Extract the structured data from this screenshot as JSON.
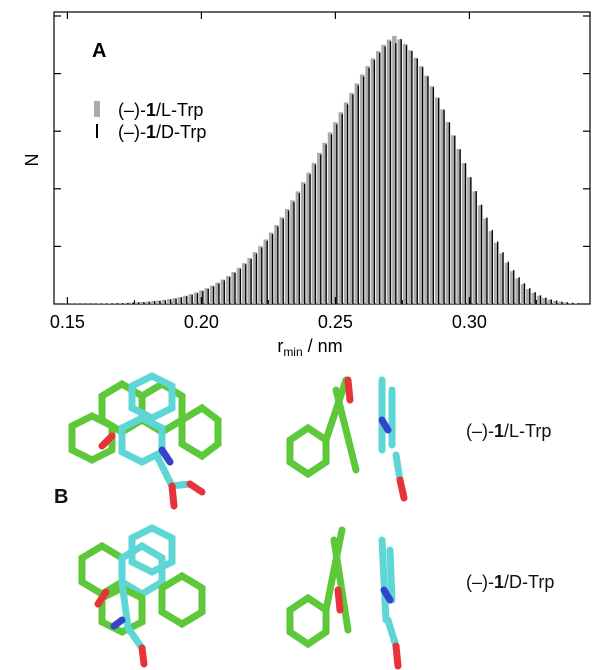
{
  "panel_a_label": "A",
  "panel_b_label": "B",
  "chart_data": {
    "type": "bar",
    "xlabel_main": "r",
    "xlabel_sub": "min",
    "xlabel_unit": " / nm",
    "ylabel": "N",
    "xlim": [
      0.145,
      0.345
    ],
    "ylim": [
      0,
      1.0
    ],
    "x_ticks": [
      "0.15",
      "0.20",
      "0.25",
      "0.30"
    ],
    "x_tick_values": [
      0.15,
      0.2,
      0.25,
      0.3
    ],
    "y_ticks_labeled": false,
    "bin_width": 0.002,
    "series": [
      {
        "name": "(–)-1/L-Trp",
        "name_prefix": "(–)-",
        "name_bold": "1",
        "name_suffix": "/L-Trp",
        "color": "#aaaaaa",
        "x": [
          0.15,
          0.152,
          0.154,
          0.156,
          0.158,
          0.16,
          0.162,
          0.164,
          0.166,
          0.168,
          0.17,
          0.172,
          0.174,
          0.176,
          0.178,
          0.18,
          0.182,
          0.184,
          0.186,
          0.188,
          0.19,
          0.192,
          0.194,
          0.196,
          0.198,
          0.2,
          0.202,
          0.204,
          0.206,
          0.208,
          0.21,
          0.212,
          0.214,
          0.216,
          0.218,
          0.22,
          0.222,
          0.224,
          0.226,
          0.228,
          0.23,
          0.232,
          0.234,
          0.236,
          0.238,
          0.24,
          0.242,
          0.244,
          0.246,
          0.248,
          0.25,
          0.252,
          0.254,
          0.256,
          0.258,
          0.26,
          0.262,
          0.264,
          0.266,
          0.268,
          0.27,
          0.272,
          0.274,
          0.276,
          0.278,
          0.28,
          0.282,
          0.284,
          0.286,
          0.288,
          0.29,
          0.292,
          0.294,
          0.296,
          0.298,
          0.3,
          0.302,
          0.304,
          0.306,
          0.308,
          0.31,
          0.312,
          0.314,
          0.316,
          0.318,
          0.32,
          0.322,
          0.324,
          0.326,
          0.328,
          0.33,
          0.332,
          0.334,
          0.336,
          0.338,
          0.34
        ],
        "values": [
          0.001,
          0.001,
          0.001,
          0.001,
          0.001,
          0.001,
          0.002,
          0.002,
          0.002,
          0.003,
          0.003,
          0.004,
          0.005,
          0.006,
          0.007,
          0.008,
          0.01,
          0.012,
          0.014,
          0.017,
          0.02,
          0.024,
          0.029,
          0.034,
          0.04,
          0.047,
          0.055,
          0.064,
          0.074,
          0.085,
          0.097,
          0.111,
          0.126,
          0.142,
          0.16,
          0.18,
          0.201,
          0.224,
          0.248,
          0.274,
          0.301,
          0.33,
          0.36,
          0.391,
          0.423,
          0.456,
          0.49,
          0.525,
          0.56,
          0.596,
          0.631,
          0.666,
          0.7,
          0.733,
          0.766,
          0.797,
          0.826,
          0.853,
          0.878,
          0.9,
          0.918,
          0.931,
          0.919,
          0.903,
          0.881,
          0.855,
          0.826,
          0.793,
          0.756,
          0.717,
          0.676,
          0.632,
          0.586,
          0.538,
          0.489,
          0.44,
          0.391,
          0.343,
          0.297,
          0.253,
          0.213,
          0.176,
          0.143,
          0.114,
          0.089,
          0.069,
          0.052,
          0.039,
          0.029,
          0.021,
          0.015,
          0.011,
          0.008,
          0.006,
          0.004,
          0.003
        ]
      },
      {
        "name": "(–)-1/D-Trp",
        "name_prefix": "(–)-",
        "name_bold": "1",
        "name_suffix": "/D-Trp",
        "color": "#000000",
        "x": [
          0.15,
          0.152,
          0.154,
          0.156,
          0.158,
          0.16,
          0.162,
          0.164,
          0.166,
          0.168,
          0.17,
          0.172,
          0.174,
          0.176,
          0.178,
          0.18,
          0.182,
          0.184,
          0.186,
          0.188,
          0.19,
          0.192,
          0.194,
          0.196,
          0.198,
          0.2,
          0.202,
          0.204,
          0.206,
          0.208,
          0.21,
          0.212,
          0.214,
          0.216,
          0.218,
          0.22,
          0.222,
          0.224,
          0.226,
          0.228,
          0.23,
          0.232,
          0.234,
          0.236,
          0.238,
          0.24,
          0.242,
          0.244,
          0.246,
          0.248,
          0.25,
          0.252,
          0.254,
          0.256,
          0.258,
          0.26,
          0.262,
          0.264,
          0.266,
          0.268,
          0.27,
          0.272,
          0.274,
          0.276,
          0.278,
          0.28,
          0.282,
          0.284,
          0.286,
          0.288,
          0.29,
          0.292,
          0.294,
          0.296,
          0.298,
          0.3,
          0.302,
          0.304,
          0.306,
          0.308,
          0.31,
          0.312,
          0.314,
          0.316,
          0.318,
          0.32,
          0.322,
          0.324,
          0.326,
          0.328,
          0.33,
          0.332,
          0.334,
          0.336,
          0.338,
          0.34
        ],
        "values": [
          0.001,
          0.001,
          0.001,
          0.001,
          0.001,
          0.001,
          0.002,
          0.002,
          0.002,
          0.003,
          0.003,
          0.004,
          0.005,
          0.006,
          0.007,
          0.008,
          0.01,
          0.011,
          0.013,
          0.016,
          0.019,
          0.023,
          0.027,
          0.032,
          0.038,
          0.045,
          0.052,
          0.061,
          0.071,
          0.082,
          0.094,
          0.108,
          0.122,
          0.138,
          0.156,
          0.175,
          0.196,
          0.219,
          0.243,
          0.269,
          0.296,
          0.324,
          0.354,
          0.385,
          0.417,
          0.45,
          0.484,
          0.519,
          0.554,
          0.589,
          0.624,
          0.659,
          0.693,
          0.727,
          0.759,
          0.79,
          0.82,
          0.847,
          0.872,
          0.894,
          0.912,
          0.906,
          0.92,
          0.898,
          0.878,
          0.852,
          0.822,
          0.79,
          0.753,
          0.715,
          0.674,
          0.63,
          0.584,
          0.537,
          0.489,
          0.44,
          0.392,
          0.345,
          0.3,
          0.257,
          0.217,
          0.18,
          0.147,
          0.118,
          0.093,
          0.072,
          0.055,
          0.041,
          0.03,
          0.022,
          0.016,
          0.012,
          0.008,
          0.006,
          0.004,
          0.003
        ]
      }
    ]
  },
  "structures": [
    {
      "label_prefix": "(–)-",
      "label_bold": "1",
      "label_suffix": "/L-Trp"
    },
    {
      "label_prefix": "(–)-",
      "label_bold": "1",
      "label_suffix": "/D-Trp"
    }
  ],
  "colors": {
    "carbon_host": "#5cc83a",
    "carbon_guest": "#5ed6d6",
    "oxygen": "#e8333a",
    "nitrogen": "#3344cc",
    "hydrogen": "#e6e6e6"
  }
}
